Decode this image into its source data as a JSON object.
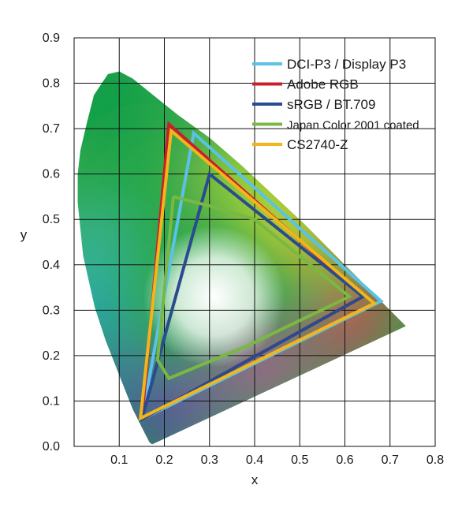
{
  "chart_data": {
    "type": "scatter",
    "xlabel": "x",
    "ylabel": "y",
    "xlim": [
      0,
      0.8
    ],
    "ylim": [
      0,
      0.9
    ],
    "x_ticks": [
      "0.1",
      "0.2",
      "0.3",
      "0.4",
      "0.5",
      "0.6",
      "0.7",
      "0.8"
    ],
    "y_ticks": [
      "0.0",
      "0.1",
      "0.2",
      "0.3",
      "0.4",
      "0.5",
      "0.6",
      "0.7",
      "0.8",
      "0.9"
    ],
    "grid": true,
    "legend_position": "top-right",
    "spectral_locus": {
      "points": [
        [
          0.174,
          0.005
        ],
        [
          0.172,
          0.005
        ],
        [
          0.167,
          0.009
        ],
        [
          0.154,
          0.034
        ],
        [
          0.13,
          0.082
        ],
        [
          0.102,
          0.152
        ],
        [
          0.07,
          0.233
        ],
        [
          0.046,
          0.306
        ],
        [
          0.02,
          0.42
        ],
        [
          0.008,
          0.537
        ],
        [
          0.008,
          0.6
        ],
        [
          0.014,
          0.652
        ],
        [
          0.028,
          0.711
        ],
        [
          0.044,
          0.774
        ],
        [
          0.075,
          0.82
        ],
        [
          0.1,
          0.826
        ],
        [
          0.13,
          0.81
        ],
        [
          0.18,
          0.77
        ],
        [
          0.23,
          0.73
        ],
        [
          0.3,
          0.68
        ],
        [
          0.37,
          0.62
        ],
        [
          0.44,
          0.555
        ],
        [
          0.51,
          0.49
        ],
        [
          0.58,
          0.42
        ],
        [
          0.64,
          0.36
        ],
        [
          0.69,
          0.31
        ],
        [
          0.735,
          0.265
        ]
      ]
    },
    "series": [
      {
        "name": "DCI-P3 / Display P3",
        "color": "#5bc2e7",
        "points": [
          [
            0.68,
            0.32
          ],
          [
            0.265,
            0.69
          ],
          [
            0.15,
            0.06
          ]
        ]
      },
      {
        "name": "Adobe RGB",
        "color": "#c8202a",
        "points": [
          [
            0.64,
            0.33
          ],
          [
            0.21,
            0.71
          ],
          [
            0.15,
            0.06
          ]
        ]
      },
      {
        "name": "sRGB / BT.709",
        "color": "#2a4b8d",
        "points": [
          [
            0.64,
            0.33
          ],
          [
            0.3,
            0.6
          ],
          [
            0.15,
            0.06
          ]
        ]
      },
      {
        "name": "Japan Color 2001 coated",
        "color": "#79b843",
        "points": [
          [
            0.22,
            0.55
          ],
          [
            0.3,
            0.53
          ],
          [
            0.4,
            0.5
          ],
          [
            0.61,
            0.33
          ],
          [
            0.38,
            0.22
          ],
          [
            0.21,
            0.15
          ],
          [
            0.185,
            0.19
          ],
          [
            0.22,
            0.55
          ]
        ]
      },
      {
        "name": "CS2740-Z",
        "color": "#f2b51c",
        "points": [
          [
            0.665,
            0.315
          ],
          [
            0.215,
            0.695
          ],
          [
            0.147,
            0.062
          ]
        ]
      }
    ]
  }
}
